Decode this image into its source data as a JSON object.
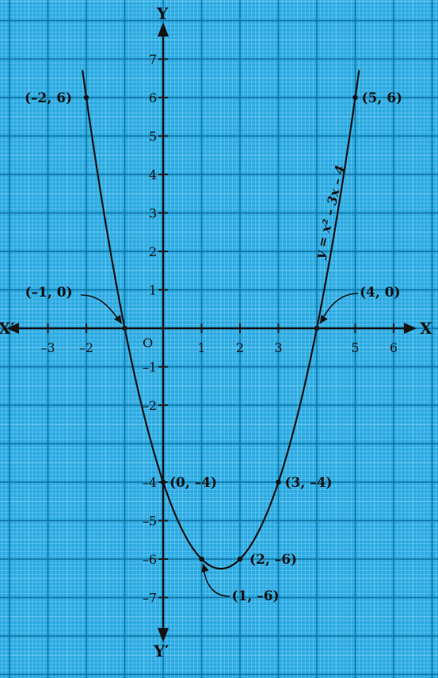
{
  "chart_data": {
    "type": "line",
    "x_axis_labels": {
      "positive": "X",
      "negative": "X′"
    },
    "y_axis_labels": {
      "positive": "Y",
      "negative": "Y′"
    },
    "origin_label": "O",
    "xlim": [
      -4.2,
      6.8
    ],
    "ylim": [
      -8.2,
      8.1
    ],
    "x_ticks": [
      {
        "value": -3,
        "label": "–3"
      },
      {
        "value": -2,
        "label": "–2"
      },
      {
        "value": 1,
        "label": "1"
      },
      {
        "value": 2,
        "label": "2"
      },
      {
        "value": 3,
        "label": "3"
      },
      {
        "value": 5,
        "label": "5"
      },
      {
        "value": 6,
        "label": "6"
      }
    ],
    "y_ticks": [
      {
        "value": 7,
        "label": "7"
      },
      {
        "value": 6,
        "label": "6"
      },
      {
        "value": 5,
        "label": "5"
      },
      {
        "value": 4,
        "label": "4"
      },
      {
        "value": 3,
        "label": "3"
      },
      {
        "value": 2,
        "label": "2"
      },
      {
        "value": 1,
        "label": "1"
      },
      {
        "value": -1,
        "label": "–1"
      },
      {
        "value": -2,
        "label": "–2"
      },
      {
        "value": -4,
        "label": "–4"
      },
      {
        "value": -5,
        "label": "–5"
      },
      {
        "value": -6,
        "label": "–6"
      },
      {
        "value": -7,
        "label": "–7"
      }
    ],
    "series": [
      {
        "name": "y = x² – 3x – 4",
        "color": "#111111",
        "x": [
          -2.1,
          -2,
          -1.5,
          -1,
          -0.5,
          0,
          0.5,
          1,
          1.5,
          2,
          2.5,
          3,
          3.5,
          4,
          4.5,
          5,
          5.1
        ],
        "y": [
          6.71,
          6,
          2.75,
          0,
          -2.25,
          -4,
          -5.25,
          -6,
          -6.25,
          -6,
          -5.25,
          -4,
          -2.25,
          0,
          2.75,
          6,
          6.71
        ]
      }
    ],
    "points": [
      {
        "x": -2,
        "y": 6,
        "label": "(–2, 6)"
      },
      {
        "x": 5,
        "y": 6,
        "label": "(5, 6)"
      },
      {
        "x": -1,
        "y": 0,
        "label": "(–1, 0)"
      },
      {
        "x": 4,
        "y": 0,
        "label": "(4, 0)"
      },
      {
        "x": 0,
        "y": -4,
        "label": "(0, –4)"
      },
      {
        "x": 3,
        "y": -4,
        "label": "(3, –4)"
      },
      {
        "x": 2,
        "y": -6,
        "label": "(2, –6)"
      },
      {
        "x": 1,
        "y": -6,
        "label": "(1, –6)"
      }
    ],
    "grid": true,
    "grid_colors": {
      "background": "#29a9e1",
      "minor": "#7fd0f2",
      "major": "#0d6f9e"
    }
  }
}
